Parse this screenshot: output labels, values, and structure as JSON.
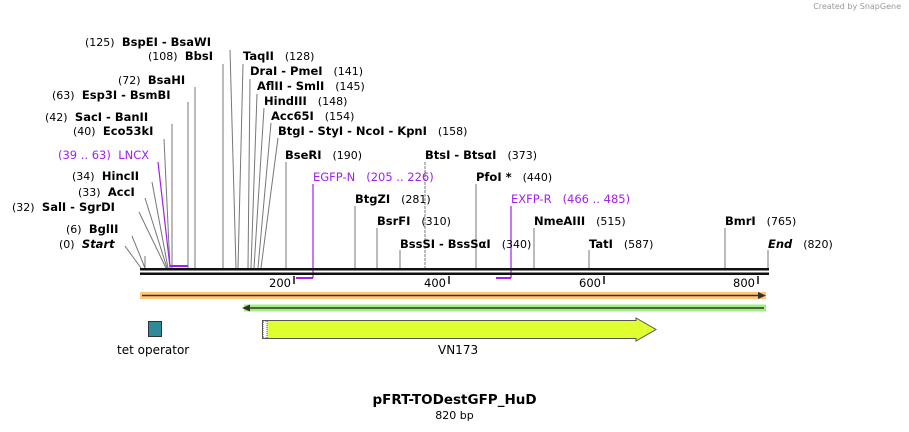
{
  "credit": "Created by SnapGene",
  "title": "pFRT-TODestGFP_HuD",
  "length": "820 bp",
  "sites": [
    {
      "pos": "(125)",
      "name": "BspEI  - BsaWI"
    },
    {
      "pos": "(108)",
      "name": "BbsI"
    },
    {
      "pos": "(128)",
      "name": "TaqII"
    },
    {
      "pos": "(141)",
      "name": "DraI  - PmeI"
    },
    {
      "pos": "(145)",
      "name": "AflII  - SmlI"
    },
    {
      "pos": "(148)",
      "name": "HindIII"
    },
    {
      "pos": "(154)",
      "name": "Acc65I"
    },
    {
      "pos": "(158)",
      "name": "BtgI  - StyI  - NcoI  - KpnI"
    },
    {
      "pos": "(72)",
      "name": "BsaHI"
    },
    {
      "pos": "(63)",
      "name": "Esp3I  - BsmBI"
    },
    {
      "pos": "(42)",
      "name": "SacI  - BanII"
    },
    {
      "pos": "(40)",
      "name": "Eco53kI"
    },
    {
      "pos": "(34)",
      "name": "HincII"
    },
    {
      "pos": "(33)",
      "name": "AccI"
    },
    {
      "pos": "(32)",
      "name": "SalI  - SgrDI"
    },
    {
      "pos": "(6)",
      "name": "BglII"
    },
    {
      "pos": "(0)",
      "name": "Start"
    },
    {
      "pos": "(190)",
      "name": "BseRI"
    },
    {
      "pos": "(373)",
      "name": "BtsI  - BtsαI"
    },
    {
      "pos": "(440)",
      "name": "PfoI *"
    },
    {
      "pos": "(281)",
      "name": "BtgZI"
    },
    {
      "pos": "(310)",
      "name": "BsrFI"
    },
    {
      "pos": "(340)",
      "name": "BssSI  - BssSαI"
    },
    {
      "pos": "(515)",
      "name": "NmeAIII"
    },
    {
      "pos": "(587)",
      "name": "TatI"
    },
    {
      "pos": "(765)",
      "name": "BmrI"
    },
    {
      "pos": "(820)",
      "name": "End"
    }
  ],
  "primers": [
    {
      "name": "LNCX",
      "range": "(39 .. 63)"
    },
    {
      "name": "EGFP-N",
      "range": "(205 .. 226)"
    },
    {
      "name": "EXFP-R",
      "range": "(466 .. 485)"
    }
  ],
  "ticks": [
    "200",
    "400",
    "600",
    "800"
  ],
  "features": [
    {
      "name": "tet operator",
      "color": "#2e8b9a"
    },
    {
      "name": "VN173",
      "color": "#e0ff30"
    }
  ],
  "colors": {
    "primer": "#a020f0",
    "forward_strand": "#ffc878",
    "reverse_strand": "#a0f080"
  }
}
